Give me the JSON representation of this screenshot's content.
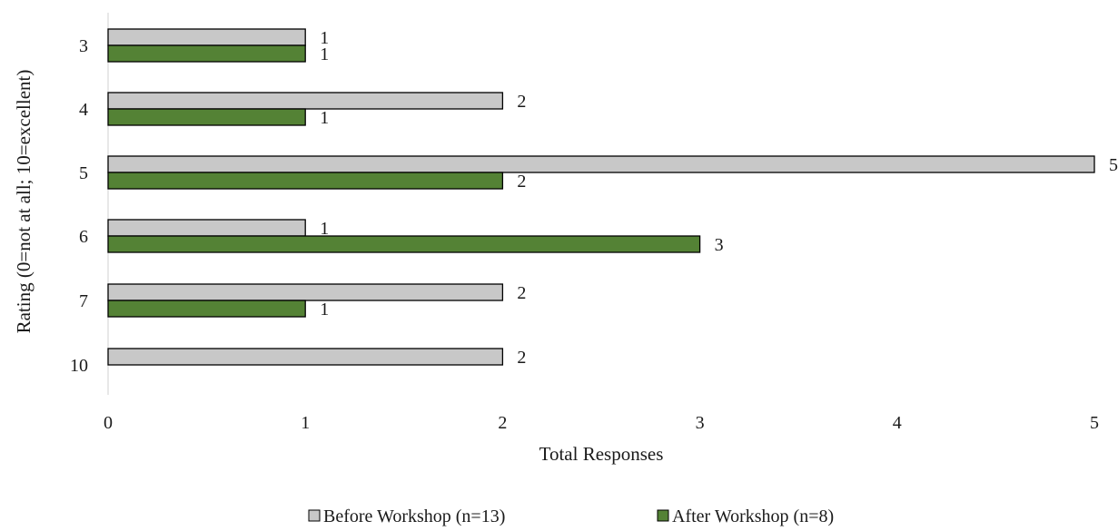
{
  "chart_data": {
    "type": "bar",
    "orientation": "horizontal",
    "categories": [
      "3",
      "4",
      "5",
      "6",
      "7",
      "10"
    ],
    "series": [
      {
        "name": "Before Workshop (n=13)",
        "values": [
          1,
          2,
          5,
          1,
          2,
          2
        ],
        "color": "#c8c8c8"
      },
      {
        "name": "After Workshop (n=8)",
        "values": [
          1,
          1,
          2,
          3,
          1,
          null
        ],
        "color": "#548235"
      }
    ],
    "xlabel": "Total Responses",
    "ylabel": "Rating (0=not at all; 10=excellent)",
    "xlim": [
      0,
      5
    ],
    "xticks": [
      "0",
      "1",
      "2",
      "3",
      "4",
      "5"
    ],
    "grid": false,
    "legend_position": "bottom",
    "data_labels": true
  }
}
